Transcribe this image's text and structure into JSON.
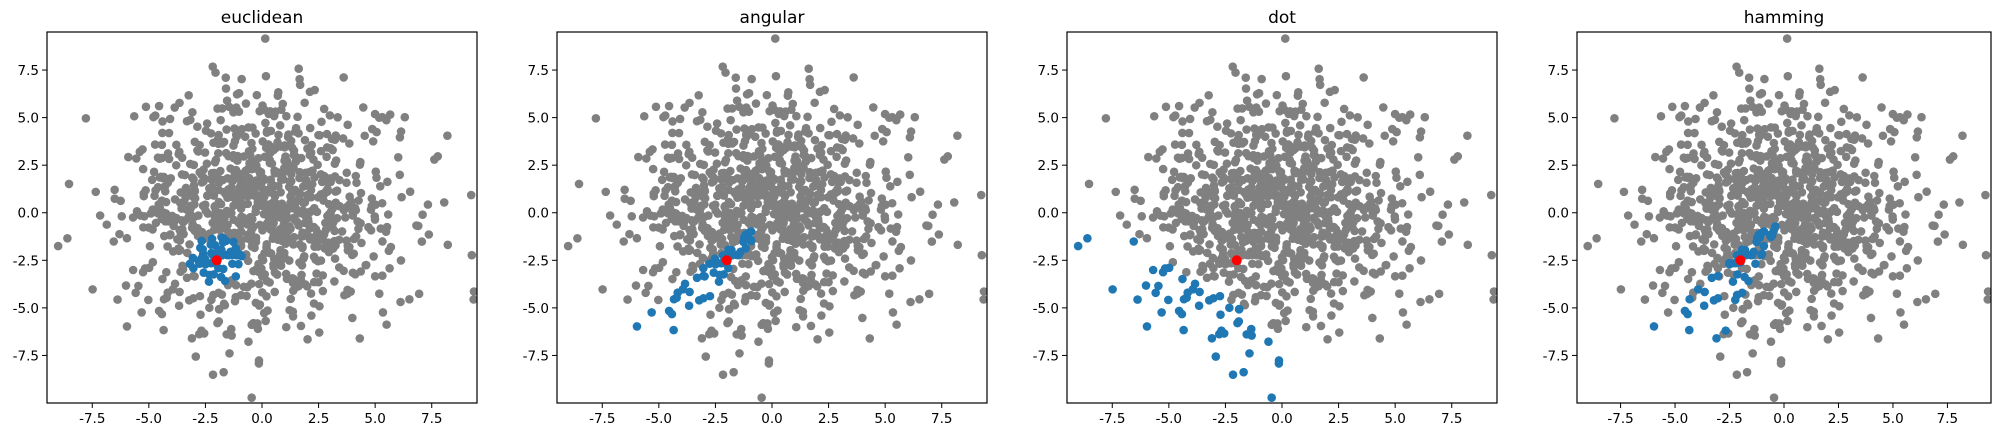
{
  "chart_data": [
    {
      "type": "scatter",
      "title": "euclidean",
      "xlim": [
        -9.5,
        9.5
      ],
      "ylim": [
        -10,
        9.5
      ],
      "xticks": [
        "-7.5",
        "-5.0",
        "-2.5",
        "0.0",
        "2.5",
        "5.0",
        "7.5"
      ],
      "yticks": [
        "-7.5",
        "-5.0",
        "-2.5",
        "0.0",
        "2.5",
        "5.0",
        "7.5"
      ],
      "query": {
        "x": -2.0,
        "y": -2.5
      },
      "neighbor_rule": "radius",
      "neighbor_count": 50,
      "series": [
        {
          "role": "background",
          "color": "#808080"
        },
        {
          "role": "neighbors",
          "color": "#1f77b4"
        },
        {
          "role": "query",
          "color": "#ff0000"
        }
      ]
    },
    {
      "type": "scatter",
      "title": "angular",
      "xlim": [
        -9.5,
        9.5
      ],
      "ylim": [
        -10,
        9.5
      ],
      "xticks": [
        "-7.5",
        "-5.0",
        "-2.5",
        "0.0",
        "2.5",
        "5.0",
        "7.5"
      ],
      "yticks": [
        "-7.5",
        "-5.0",
        "-2.5",
        "0.0",
        "2.5",
        "5.0",
        "7.5"
      ],
      "query": {
        "x": -2.0,
        "y": -2.5
      },
      "neighbor_rule": "angle",
      "neighbor_count": 50,
      "series": [
        {
          "role": "background",
          "color": "#808080"
        },
        {
          "role": "neighbors",
          "color": "#1f77b4"
        },
        {
          "role": "query",
          "color": "#ff0000"
        }
      ]
    },
    {
      "type": "scatter",
      "title": "dot",
      "xlim": [
        -9.5,
        9.5
      ],
      "ylim": [
        -10,
        9.5
      ],
      "xticks": [
        "-7.5",
        "-5.0",
        "-2.5",
        "0.0",
        "2.5",
        "5.0",
        "7.5"
      ],
      "yticks": [
        "-7.5",
        "-5.0",
        "-2.5",
        "0.0",
        "2.5",
        "5.0",
        "7.5"
      ],
      "query": {
        "x": -2.0,
        "y": -2.5
      },
      "neighbor_rule": "dot",
      "neighbor_count": 50,
      "series": [
        {
          "role": "background",
          "color": "#808080"
        },
        {
          "role": "neighbors",
          "color": "#1f77b4"
        },
        {
          "role": "query",
          "color": "#ff0000"
        }
      ]
    },
    {
      "type": "scatter",
      "title": "hamming",
      "xlim": [
        -9.5,
        9.5
      ],
      "ylim": [
        -10,
        9.5
      ],
      "xticks": [
        "-7.5",
        "-5.0",
        "-2.5",
        "0.0",
        "2.5",
        "5.0",
        "7.5"
      ],
      "yticks": [
        "-7.5",
        "-5.0",
        "-2.5",
        "0.0",
        "2.5",
        "5.0",
        "7.5"
      ],
      "query": {
        "x": -2.0,
        "y": -2.5
      },
      "neighbor_rule": "hamming",
      "neighbor_count": 50,
      "series": [
        {
          "role": "background",
          "color": "#808080"
        },
        {
          "role": "neighbors",
          "color": "#1f77b4"
        },
        {
          "role": "query",
          "color": "#ff0000"
        }
      ]
    }
  ],
  "scatter_sample": {
    "count": 1000,
    "distribution": "gaussian",
    "mean": [
      0,
      0
    ],
    "std": 3,
    "seed": 7
  }
}
